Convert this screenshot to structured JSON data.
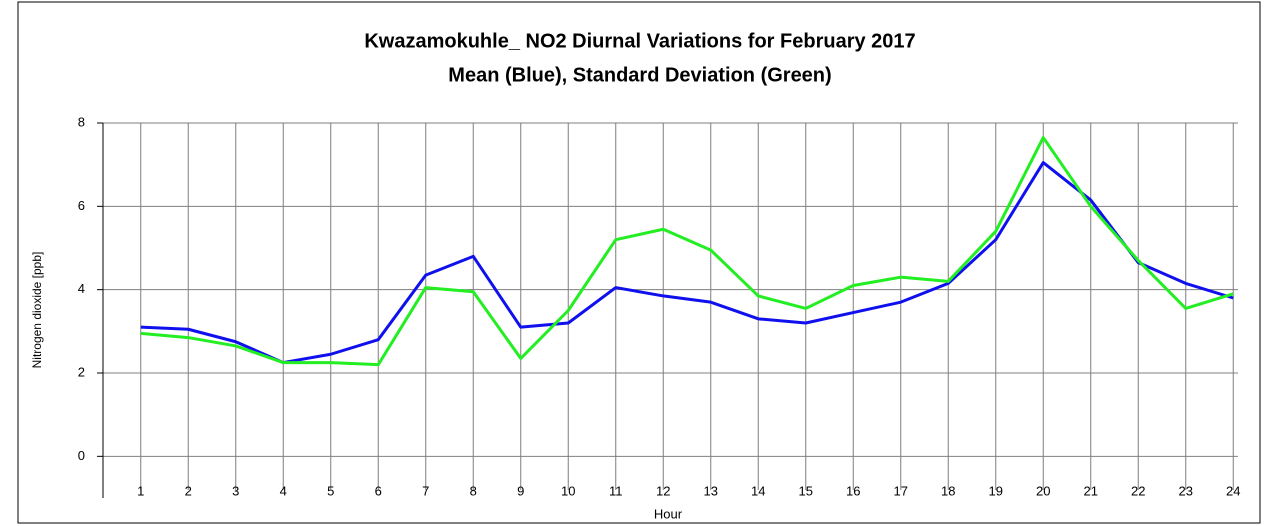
{
  "chart_data": {
    "type": "line",
    "title": "Kwazamokuhle_ NO2 Diurnal Variations for February 2017",
    "subtitle": "Mean (Blue), Standard Deviation (Green)",
    "x_label": "Hour",
    "y_label": "Nitrogen dioxide  [ppb]",
    "x": [
      1,
      2,
      3,
      4,
      5,
      6,
      7,
      8,
      9,
      10,
      11,
      12,
      13,
      14,
      15,
      16,
      17,
      18,
      19,
      20,
      21,
      22,
      23,
      24
    ],
    "series": [
      {
        "color": "#1010ee",
        "values": [
          3.1,
          3.05,
          2.75,
          2.25,
          2.45,
          2.8,
          4.35,
          4.8,
          3.1,
          3.2,
          4.05,
          3.85,
          3.7,
          3.3,
          3.2,
          3.45,
          3.7,
          4.15,
          5.2,
          7.05,
          6.15,
          4.65,
          4.15,
          3.8
        ]
      },
      {
        "color": "#22ee22",
        "values": [
          2.95,
          2.85,
          2.65,
          2.25,
          2.25,
          2.2,
          4.05,
          3.95,
          2.35,
          3.5,
          5.2,
          5.45,
          4.95,
          3.85,
          3.55,
          4.1,
          4.3,
          4.2,
          5.4,
          7.65,
          6.0,
          4.7,
          3.55,
          3.9
        ]
      }
    ],
    "xlim": [
      0.1,
      24.1
    ],
    "xticks": [
      1,
      2,
      3,
      4,
      5,
      6,
      7,
      8,
      9,
      10,
      11,
      12,
      13,
      14,
      15,
      16,
      17,
      18,
      19,
      20,
      21,
      22,
      23,
      24
    ],
    "ylim": [
      -1,
      8
    ],
    "yticks": [
      0,
      2,
      4,
      6,
      8
    ],
    "grid": true
  }
}
